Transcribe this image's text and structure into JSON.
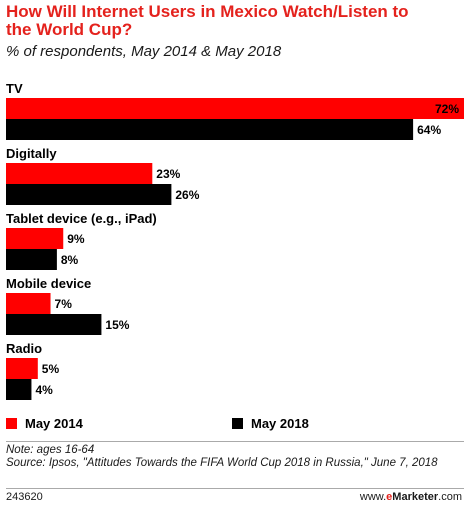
{
  "title": "How Will Internet Users in Mexico Watch/Listen to the World Cup?",
  "subtitle": "% of respondents, May 2014 & May 2018",
  "colors": {
    "may_2014": "#ff0000",
    "may_2018": "#000000",
    "title": "#e4221d"
  },
  "chart_data": {
    "type": "bar",
    "orientation": "horizontal",
    "categories": [
      "TV",
      "Digitally",
      "Tablet device (e.g., iPad)",
      "Mobile device",
      "Radio"
    ],
    "series": [
      {
        "name": "May 2014",
        "values": [
          72,
          23,
          9,
          7,
          5
        ],
        "labels": [
          "72%",
          "23%",
          "9%",
          "7%",
          "5%"
        ]
      },
      {
        "name": "May 2018",
        "values": [
          64,
          26,
          8,
          15,
          4
        ],
        "labels": [
          "64%",
          "26%",
          "8%",
          "15%",
          "4%"
        ]
      }
    ],
    "xlim": [
      0,
      72
    ],
    "grid": false,
    "legend_placement": "bottom"
  },
  "legend": {
    "may_2014": "May 2014",
    "may_2018": "May 2018"
  },
  "note": "Note: ages 16-64",
  "source": "Source: Ipsos, \"Attitudes Towards the FIFA World Cup 2018 in Russia,\" June 7, 2018",
  "chart_id": "243620",
  "brand": {
    "prefix": "www.",
    "e": "e",
    "name": "Marketer",
    "suffix": ".com"
  }
}
